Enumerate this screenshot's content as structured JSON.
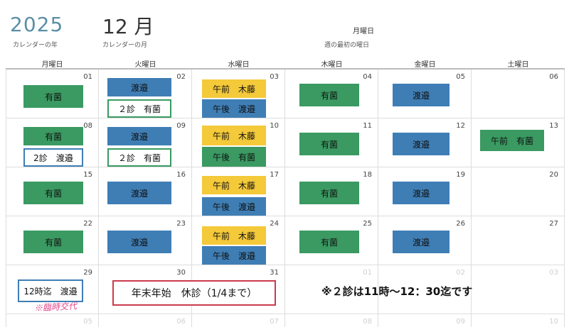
{
  "header": {
    "year": "2025",
    "year_label": "カレンダーの年",
    "month": "12 月",
    "month_label": "カレンダーの月",
    "weekday_value": "月曜日",
    "weekday_label": "週の最初の曜日"
  },
  "weekdays": [
    "月曜日",
    "火曜日",
    "水曜日",
    "木曜日",
    "金曜日",
    "土曜日"
  ],
  "colors": {
    "green": "#3a9a62",
    "blue": "#3f7eb5",
    "yellow": "#f4c93a",
    "red": "#cc3a4e",
    "pink": "#e0458a"
  },
  "days": [
    {
      "num": "01",
      "dim": false,
      "entries": [
        {
          "text": "有菌",
          "style": "green"
        }
      ]
    },
    {
      "num": "02",
      "dim": false,
      "entries": [
        {
          "text": "渡邉",
          "style": "blue"
        },
        {
          "text": "２診　有菌",
          "style": "outline-green"
        }
      ]
    },
    {
      "num": "03",
      "dim": false,
      "entries": [
        {
          "text": "午前　木藤",
          "style": "yellow"
        },
        {
          "text": "午後　渡邉",
          "style": "blue"
        }
      ]
    },
    {
      "num": "04",
      "dim": false,
      "entries": [
        {
          "text": "有菌",
          "style": "green"
        }
      ]
    },
    {
      "num": "05",
      "dim": false,
      "entries": [
        {
          "text": "渡邉",
          "style": "blue"
        }
      ]
    },
    {
      "num": "06",
      "dim": false,
      "entries": []
    },
    {
      "num": "08",
      "dim": false,
      "entries": [
        {
          "text": "有菌",
          "style": "green"
        },
        {
          "text": "2診　渡邉",
          "style": "outline-blue"
        }
      ]
    },
    {
      "num": "09",
      "dim": false,
      "entries": [
        {
          "text": "渡邉",
          "style": "blue"
        },
        {
          "text": "２診　有菌",
          "style": "outline-green"
        }
      ]
    },
    {
      "num": "10",
      "dim": false,
      "entries": [
        {
          "text": "午前　木藤",
          "style": "yellow"
        },
        {
          "text": "午後　有菌",
          "style": "green"
        }
      ]
    },
    {
      "num": "11",
      "dim": false,
      "entries": [
        {
          "text": "有菌",
          "style": "green"
        }
      ]
    },
    {
      "num": "12",
      "dim": false,
      "entries": [
        {
          "text": "渡邉",
          "style": "blue"
        }
      ]
    },
    {
      "num": "13",
      "dim": false,
      "entries": [
        {
          "text": "午前　有菌",
          "style": "green"
        }
      ]
    },
    {
      "num": "15",
      "dim": false,
      "entries": [
        {
          "text": "有菌",
          "style": "green"
        }
      ]
    },
    {
      "num": "16",
      "dim": false,
      "entries": [
        {
          "text": "渡邉",
          "style": "blue"
        }
      ]
    },
    {
      "num": "17",
      "dim": false,
      "entries": [
        {
          "text": "午前　木藤",
          "style": "yellow"
        },
        {
          "text": "午後　渡邉",
          "style": "blue"
        }
      ]
    },
    {
      "num": "18",
      "dim": false,
      "entries": [
        {
          "text": "有菌",
          "style": "green"
        }
      ]
    },
    {
      "num": "19",
      "dim": false,
      "entries": [
        {
          "text": "渡邉",
          "style": "blue"
        }
      ]
    },
    {
      "num": "20",
      "dim": false,
      "entries": []
    },
    {
      "num": "22",
      "dim": false,
      "entries": [
        {
          "text": "有菌",
          "style": "green"
        }
      ]
    },
    {
      "num": "23",
      "dim": false,
      "entries": [
        {
          "text": "渡邉",
          "style": "blue"
        }
      ]
    },
    {
      "num": "24",
      "dim": false,
      "entries": [
        {
          "text": "午前　木藤",
          "style": "yellow"
        },
        {
          "text": "午後　渡邉",
          "style": "blue"
        }
      ]
    },
    {
      "num": "25",
      "dim": false,
      "entries": [
        {
          "text": "有菌",
          "style": "green"
        }
      ]
    },
    {
      "num": "26",
      "dim": false,
      "entries": [
        {
          "text": "渡邉",
          "style": "blue"
        }
      ]
    },
    {
      "num": "27",
      "dim": false,
      "entries": []
    },
    {
      "num": "29",
      "dim": false,
      "entries": [
        {
          "text": "12時迄　渡邉",
          "style": "outline-blue"
        }
      ]
    },
    {
      "num": "30",
      "dim": false,
      "entries": []
    },
    {
      "num": "31",
      "dim": false,
      "entries": []
    },
    {
      "num": "01",
      "dim": true,
      "entries": []
    },
    {
      "num": "02",
      "dim": true,
      "entries": []
    },
    {
      "num": "03",
      "dim": true,
      "entries": []
    },
    {
      "num": "05",
      "dim": true,
      "entries": []
    },
    {
      "num": "06",
      "dim": true,
      "entries": []
    },
    {
      "num": "07",
      "dim": true,
      "entries": []
    },
    {
      "num": "08",
      "dim": true,
      "entries": []
    },
    {
      "num": "09",
      "dim": true,
      "entries": []
    },
    {
      "num": "10",
      "dim": true,
      "entries": []
    }
  ],
  "year_end_notice": "年末年始　休診（1/4まで）",
  "handwritten_note": "※臨時交代",
  "second_clinic_note": "※２診は11時～12：30迄です"
}
